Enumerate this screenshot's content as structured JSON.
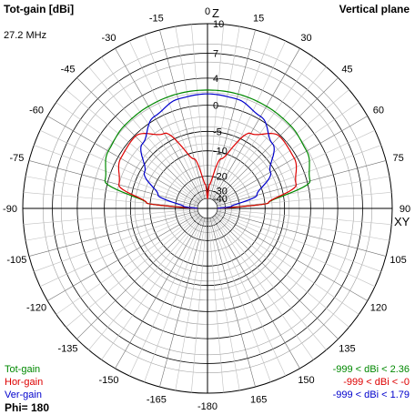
{
  "header": {
    "title": "Tot-gain [dBi]",
    "frequency": "27.2 MHz",
    "plane": "Vertical plane"
  },
  "axes": {
    "top_axis_label": "Z",
    "right_axis_label": "XY",
    "angle_labels": [
      "-180",
      "-165",
      "-150",
      "-135",
      "-120",
      "-105",
      "-90",
      "-75",
      "-60",
      "-45",
      "-30",
      "-15",
      "0",
      "15",
      "30",
      "45",
      "60",
      "75",
      "90",
      "105",
      "120",
      "135",
      "150",
      "165"
    ],
    "radial_labels": [
      "10",
      "7",
      "4",
      "0",
      "-5",
      "-10",
      "-20",
      "-30",
      "-40"
    ]
  },
  "legend": {
    "items": [
      {
        "label": "Tot-gain",
        "range": "-999 < dBi < 2.36",
        "color": "#008800"
      },
      {
        "label": "Hor-gain",
        "range": "-999 < dBi < -0",
        "color": "#dd0000"
      },
      {
        "label": "Ver-gain",
        "range": "-999 < dBi < 1.79",
        "color": "#0000cc"
      }
    ],
    "phi": "Phi= 180"
  },
  "chart_data": {
    "type": "polar",
    "title": "Tot-gain [dBi]",
    "angle_unit": "degrees",
    "radial_unit": "dBi",
    "radial_ticks": [
      10,
      7,
      4,
      0,
      -5,
      -10,
      -20,
      -30,
      -40
    ],
    "angle_ticks": [
      -180,
      -165,
      -150,
      -135,
      -120,
      -105,
      -90,
      -75,
      -60,
      -45,
      -30,
      -15,
      0,
      15,
      30,
      45,
      60,
      75,
      90,
      105,
      120,
      135,
      150,
      165
    ],
    "grid": true,
    "legend_position": "bottom-left",
    "series": [
      {
        "name": "Tot-gain",
        "color": "#008800",
        "angles": [
          -90,
          -85,
          -75,
          -60,
          -45,
          -30,
          -15,
          0,
          15,
          30,
          45,
          60,
          75,
          85,
          90
        ],
        "values": [
          -40,
          -9,
          0.5,
          1.8,
          2.2,
          2.3,
          2.36,
          2.36,
          2.36,
          2.3,
          2.2,
          1.8,
          0.5,
          -9,
          -40
        ]
      },
      {
        "name": "Hor-gain",
        "color": "#dd0000",
        "angles": [
          -90,
          -85,
          -75,
          -60,
          -45,
          -30,
          -15,
          -5,
          0,
          5,
          15,
          30,
          45,
          60,
          75,
          85,
          90
        ],
        "values": [
          -40,
          -9,
          -2,
          -0.5,
          -0.2,
          -3,
          -12,
          -25,
          -40,
          -25,
          -12,
          -3,
          -0.2,
          -0.5,
          -2,
          -9,
          -40
        ]
      },
      {
        "name": "Ver-gain",
        "color": "#0000cc",
        "angles": [
          -90,
          -85,
          -75,
          -60,
          -45,
          -30,
          -15,
          0,
          15,
          30,
          45,
          60,
          75,
          85,
          90
        ],
        "values": [
          -40,
          -25,
          -12,
          -6,
          -2,
          0.5,
          1.6,
          1.79,
          1.6,
          0.5,
          -2,
          -6,
          -12,
          -25,
          -40
        ]
      }
    ]
  }
}
